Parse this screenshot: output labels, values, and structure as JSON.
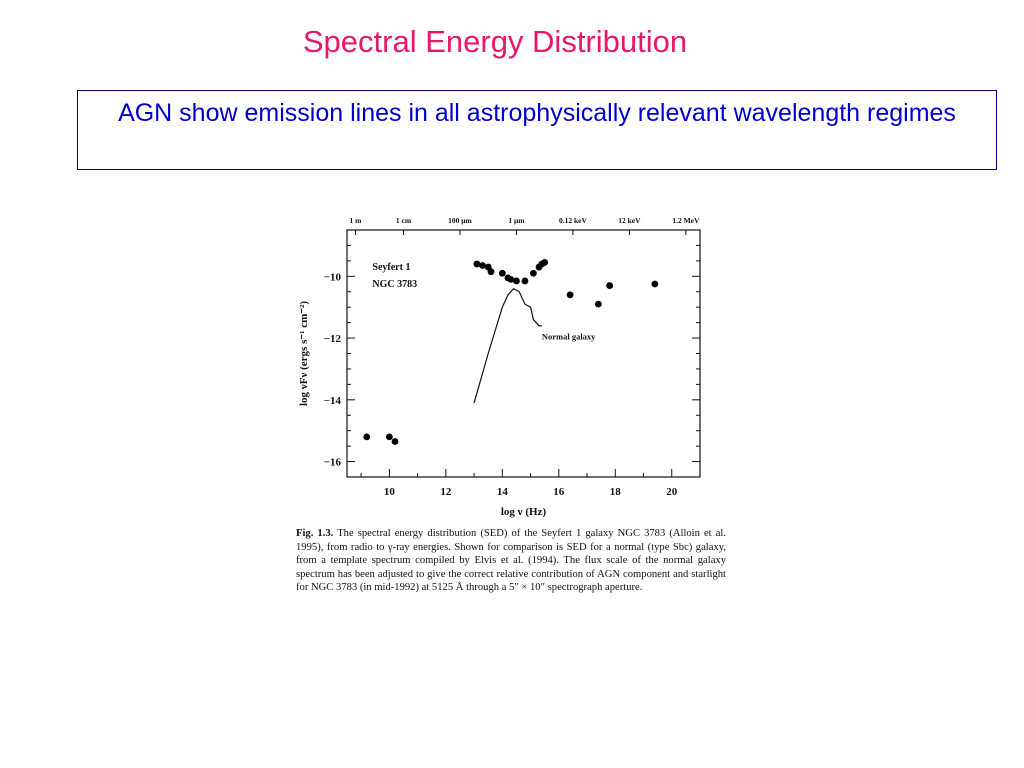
{
  "slide": {
    "title": "Spectral Energy Distribution",
    "callout": "AGN show emission lines in all astrophysically relevant wavelength regimes",
    "colors": {
      "title": "#e8176b",
      "callout_text": "#0000cc",
      "callout_border": "#000080"
    }
  },
  "caption": {
    "label": "Fig. 1.3.",
    "text": "The spectral energy distribution (SED) of the Seyfert 1 galaxy NGC 3783 (Alloin et al. 1995), from radio to γ-ray energies. Shown for comparison is SED for a normal (type Sbc) galaxy, from a template spectrum compiled by Elvis et al. (1994). The flux scale of the normal galaxy spectrum has been adjusted to give the correct relative contribution of AGN component and starlight for NGC 3783 (in mid-1992) at 5125 Å through a 5″ × 10″ spectrograph aperture."
  },
  "chart_data": {
    "type": "scatter",
    "xlabel": "log ν (Hz)",
    "ylabel": "log νFν (ergs s⁻¹ cm⁻²)",
    "xlim": [
      8.5,
      21
    ],
    "ylim": [
      -16.5,
      -8.5
    ],
    "x_ticks": [
      10,
      12,
      14,
      16,
      18,
      20
    ],
    "y_ticks": [
      -10,
      -12,
      -14,
      -16
    ],
    "top_axis_labels": [
      {
        "x": 8.8,
        "label": "1 m"
      },
      {
        "x": 10.5,
        "label": "1 cm"
      },
      {
        "x": 12.5,
        "label": "100 μm"
      },
      {
        "x": 14.5,
        "label": "1 μm"
      },
      {
        "x": 16.5,
        "label": "0.12 keV"
      },
      {
        "x": 18.5,
        "label": "12 keV"
      },
      {
        "x": 20.5,
        "label": "1.2 MeV"
      }
    ],
    "annotations": [
      {
        "text": "Seyfert 1",
        "x": 9.4,
        "y": -9.8
      },
      {
        "text": "NGC 3783",
        "x": 9.4,
        "y": -10.35
      },
      {
        "text": "Normal galaxy",
        "x": 15.4,
        "y": -12.05
      }
    ],
    "grid": false,
    "series": [
      {
        "kind": "points",
        "x": [
          9.2,
          10.0,
          10.2,
          13.1,
          13.3,
          13.5,
          13.6,
          14.0,
          14.2,
          14.3,
          14.5,
          14.8,
          15.1,
          15.3,
          15.4,
          15.5,
          16.4,
          17.4,
          17.8,
          19.4
        ],
        "y": [
          -15.2,
          -15.2,
          -15.35,
          -9.6,
          -9.65,
          -9.7,
          -9.85,
          -9.9,
          -10.05,
          -10.1,
          -10.15,
          -10.15,
          -9.9,
          -9.7,
          -9.6,
          -9.55,
          -10.6,
          -10.9,
          -10.3,
          -10.25
        ]
      },
      {
        "kind": "line",
        "x": [
          13.0,
          13.5,
          14.0,
          14.2,
          14.4,
          14.6,
          14.8,
          15.0,
          15.1,
          15.3,
          15.4
        ],
        "y": [
          -14.1,
          -12.5,
          -11.0,
          -10.6,
          -10.4,
          -10.5,
          -10.9,
          -11.0,
          -11.4,
          -11.6,
          -11.6
        ]
      }
    ]
  }
}
